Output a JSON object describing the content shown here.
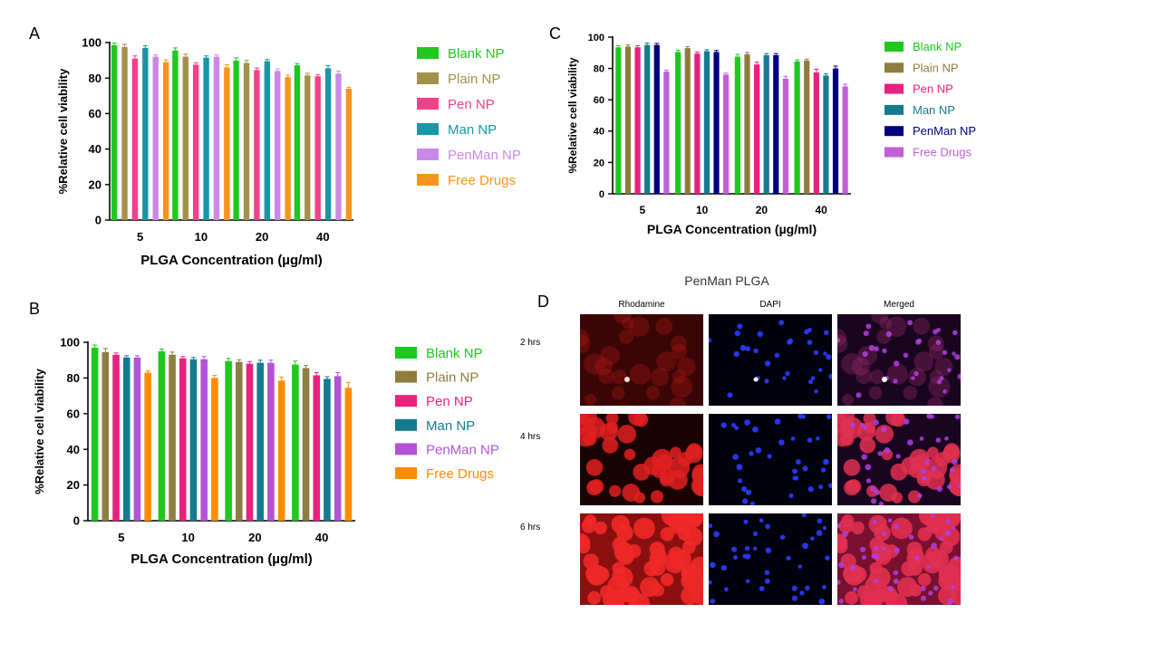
{
  "figure": {
    "panels": [
      "A",
      "B",
      "C",
      "D"
    ]
  },
  "chart_data": [
    {
      "panel": "A",
      "type": "bar",
      "categories": [
        "5",
        "10",
        "20",
        "40"
      ],
      "xlabel": "PLGA Concentration (µg/ml)",
      "ylabel": "%Relative cell viability",
      "ylim": [
        0,
        100
      ],
      "yticks": [
        "0",
        "20",
        "40",
        "60",
        "80",
        "100"
      ],
      "grid": false,
      "legend_position": "right",
      "series": [
        {
          "name": "Blank NP",
          "color": "#1ec81e",
          "values": [
            98.5,
            95.5,
            89.8,
            87.2
          ],
          "errors": [
            1.2,
            1.5,
            1.6,
            1.0
          ]
        },
        {
          "name": "Plain NP",
          "color": "#a3914a",
          "values": [
            97.5,
            92.0,
            88.5,
            81.5
          ],
          "errors": [
            1.5,
            1.5,
            1.5,
            1.2
          ]
        },
        {
          "name": "Pen NP",
          "color": "#f2408a",
          "values": [
            91.0,
            87.5,
            84.5,
            81.0
          ],
          "errors": [
            1.5,
            1.2,
            1.2,
            1.0
          ]
        },
        {
          "name": "Man NP",
          "color": "#1996a8",
          "values": [
            97.0,
            91.5,
            89.5,
            85.5
          ],
          "errors": [
            1.2,
            1.0,
            1.0,
            1.5
          ]
        },
        {
          "name": "PenMan NP",
          "color": "#c989e6",
          "values": [
            92.0,
            92.0,
            84.0,
            82.5
          ],
          "errors": [
            1.0,
            1.0,
            1.2,
            1.5
          ]
        },
        {
          "name": "Free Drugs",
          "color": "#f7941d",
          "values": [
            89.0,
            86.0,
            80.5,
            74.0
          ],
          "errors": [
            1.2,
            1.5,
            1.2,
            0.8
          ]
        }
      ]
    },
    {
      "panel": "B",
      "type": "bar",
      "categories": [
        "5",
        "10",
        "20",
        "40"
      ],
      "xlabel": "PLGA Concentration (µg/ml)",
      "ylabel": "%Relative cell viability",
      "ylim": [
        0,
        100
      ],
      "yticks": [
        "0",
        "20",
        "40",
        "60",
        "80",
        "100"
      ],
      "grid": false,
      "legend_position": "right",
      "series": [
        {
          "name": "Blank NP",
          "color": "#1ec81e",
          "values": [
            97.0,
            95.0,
            89.5,
            87.5
          ],
          "errors": [
            1.5,
            1.2,
            1.5,
            2.0
          ]
        },
        {
          "name": "Plain NP",
          "color": "#8e7d3e",
          "values": [
            94.5,
            93.0,
            89.0,
            85.5
          ],
          "errors": [
            2.0,
            1.5,
            1.2,
            1.5
          ]
        },
        {
          "name": "Pen NP",
          "color": "#e8217e",
          "values": [
            93.0,
            91.0,
            88.0,
            81.5
          ],
          "errors": [
            1.0,
            1.0,
            1.2,
            1.5
          ]
        },
        {
          "name": "Man NP",
          "color": "#157b8e",
          "values": [
            91.5,
            90.5,
            88.5,
            79.5
          ],
          "errors": [
            1.0,
            1.0,
            1.5,
            1.2
          ]
        },
        {
          "name": "PenMan NP",
          "color": "#b153d6",
          "values": [
            91.5,
            90.5,
            88.5,
            81.0
          ],
          "errors": [
            1.0,
            1.5,
            1.5,
            2.0
          ]
        },
        {
          "name": "Free Drugs",
          "color": "#ff8c00",
          "values": [
            83.0,
            80.0,
            78.5,
            74.5
          ],
          "errors": [
            1.0,
            1.5,
            2.0,
            3.0
          ]
        }
      ]
    },
    {
      "panel": "C",
      "type": "bar",
      "categories": [
        "5",
        "10",
        "20",
        "40"
      ],
      "xlabel": "PLGA Concentration (µg/ml)",
      "ylabel": "%Relative cell viability",
      "ylim": [
        0,
        100
      ],
      "yticks": [
        "0",
        "20",
        "40",
        "60",
        "80",
        "100"
      ],
      "grid": false,
      "legend_position": "right",
      "series": [
        {
          "name": "Blank NP",
          "color": "#1ec81e",
          "values": [
            93.5,
            90.5,
            87.5,
            84.5
          ],
          "errors": [
            1.0,
            1.2,
            1.5,
            1.0
          ]
        },
        {
          "name": "Plain NP",
          "color": "#8e7d3e",
          "values": [
            94.0,
            93.0,
            89.0,
            85.0
          ],
          "errors": [
            1.0,
            1.0,
            1.2,
            1.0
          ]
        },
        {
          "name": "Pen NP",
          "color": "#e8217e",
          "values": [
            93.5,
            89.5,
            82.5,
            77.5
          ],
          "errors": [
            1.0,
            1.0,
            1.5,
            2.0
          ]
        },
        {
          "name": "Man NP",
          "color": "#157b8e",
          "values": [
            95.0,
            91.0,
            88.5,
            75.5
          ],
          "errors": [
            1.2,
            1.0,
            1.0,
            1.2
          ]
        },
        {
          "name": "PenMan NP",
          "color": "#000080",
          "values": [
            95.0,
            90.5,
            88.5,
            80.0
          ],
          "errors": [
            1.0,
            1.0,
            1.0,
            1.5
          ]
        },
        {
          "name": "Free Drugs",
          "color": "#c05fd6",
          "values": [
            78.0,
            76.0,
            73.5,
            68.5
          ],
          "errors": [
            1.0,
            1.0,
            1.5,
            1.5
          ]
        }
      ]
    }
  ],
  "microscopy": {
    "title": "PenMan PLGA",
    "panel_letter": "D",
    "columns": [
      "Rhodamine",
      "DAPI",
      "Merged"
    ],
    "rows": [
      "2 hrs",
      "4 hrs",
      "6 hrs"
    ]
  }
}
